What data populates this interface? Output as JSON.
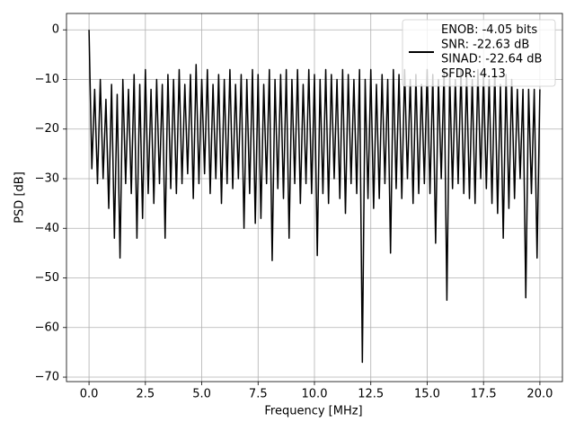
{
  "chart_data": {
    "type": "line",
    "xlabel": "Frequency [MHz]",
    "ylabel": "PSD [dB]",
    "xlim": [
      -1,
      21
    ],
    "ylim": [
      -70.9,
      3.3
    ],
    "xticks": [
      {
        "value": 0,
        "label": "0.0"
      },
      2.5,
      {
        "value": 5,
        "label": "5.0"
      },
      7.5,
      {
        "value": 10,
        "label": "10.0"
      },
      12.5,
      {
        "value": 15,
        "label": "15.0"
      },
      17.5,
      {
        "value": 20,
        "label": "20.0"
      }
    ],
    "yticks": [
      {
        "value": -70,
        "label": "−70"
      },
      {
        "value": -60,
        "label": "−60"
      },
      {
        "value": -50,
        "label": "−50"
      },
      {
        "value": -40,
        "label": "−40"
      },
      {
        "value": -30,
        "label": "−30"
      },
      {
        "value": -20,
        "label": "−20"
      },
      {
        "value": -10,
        "label": "−10"
      },
      0
    ],
    "grid": true,
    "legend": "upper right",
    "x": [
      0,
      0.125,
      0.25,
      0.375,
      0.5,
      0.625,
      0.75,
      0.875,
      1,
      1.125,
      1.25,
      1.375,
      1.5,
      1.625,
      1.75,
      1.875,
      2,
      2.125,
      2.25,
      2.375,
      2.5,
      2.625,
      2.75,
      2.875,
      3,
      3.125,
      3.25,
      3.375,
      3.5,
      3.625,
      3.75,
      3.875,
      4,
      4.125,
      4.25,
      4.375,
      4.5,
      4.625,
      4.75,
      4.875,
      5,
      5.125,
      5.25,
      5.375,
      5.5,
      5.625,
      5.75,
      5.875,
      6,
      6.125,
      6.25,
      6.375,
      6.5,
      6.625,
      6.75,
      6.875,
      7,
      7.125,
      7.25,
      7.375,
      7.5,
      7.625,
      7.75,
      7.875,
      8,
      8.125,
      8.25,
      8.375,
      8.5,
      8.625,
      8.75,
      8.875,
      9,
      9.125,
      9.25,
      9.375,
      9.5,
      9.625,
      9.75,
      9.875,
      10,
      10.125,
      10.25,
      10.375,
      10.5,
      10.625,
      10.75,
      10.875,
      11,
      11.125,
      11.25,
      11.375,
      11.5,
      11.625,
      11.75,
      11.875,
      12,
      12.125,
      12.25,
      12.375,
      12.5,
      12.625,
      12.75,
      12.875,
      13,
      13.125,
      13.25,
      13.375,
      13.5,
      13.625,
      13.75,
      13.875,
      14,
      14.125,
      14.25,
      14.375,
      14.5,
      14.625,
      14.75,
      14.875,
      15,
      15.125,
      15.25,
      15.375,
      15.5,
      15.625,
      15.75,
      15.875,
      16,
      16.125,
      16.25,
      16.375,
      16.5,
      16.625,
      16.75,
      16.875,
      17,
      17.125,
      17.25,
      17.375,
      17.5,
      17.625,
      17.75,
      17.875,
      18,
      18.125,
      18.25,
      18.375,
      18.5,
      18.625,
      18.75,
      18.875,
      19,
      19.125,
      19.25,
      19.375,
      19.5,
      19.625,
      19.75,
      19.875,
      20
    ],
    "series": [
      {
        "name": "ENOB: -4.05 bits\nSNR: -22.63 dB\nSINAD: -22.64 dB\nSFDR: 4.13",
        "color": "#000000",
        "values": [
          0,
          -28,
          -12,
          -31,
          -10,
          -30,
          -14,
          -36,
          -11,
          -42,
          -13,
          -46,
          -10,
          -31,
          -12,
          -33,
          -9,
          -42,
          -11,
          -38,
          -8,
          -33,
          -12,
          -35,
          -10,
          -31,
          -11,
          -42,
          -9,
          -32,
          -10,
          -33,
          -8,
          -31,
          -11,
          -29,
          -9,
          -34,
          -7,
          -31,
          -10,
          -29,
          -8,
          -33,
          -11,
          -30,
          -9,
          -35,
          -10,
          -31,
          -8,
          -32,
          -11,
          -30,
          -9,
          -40,
          -10,
          -33,
          -8,
          -39,
          -9,
          -38,
          -11,
          -31,
          -8,
          -46.5,
          -10,
          -32,
          -9,
          -34,
          -8,
          -42,
          -10,
          -31,
          -8,
          -35,
          -11,
          -31,
          -8,
          -33,
          -9,
          -45.5,
          -10,
          -33,
          -8,
          -35,
          -9,
          -30,
          -10,
          -34,
          -8,
          -37,
          -9,
          -31,
          -10,
          -33,
          -8,
          -67,
          -10,
          -34,
          -8,
          -36,
          -11,
          -34,
          -9,
          -31,
          -10,
          -45,
          -8,
          -32,
          -9,
          -34,
          -8,
          -30,
          -10,
          -35,
          -9,
          -33,
          -11,
          -31,
          -8,
          -33,
          -9,
          -43,
          -10,
          -30,
          -8,
          -54.5,
          -9,
          -32,
          -10,
          -31,
          -8,
          -33,
          -9,
          -34,
          -10,
          -35,
          -8,
          -30,
          -9,
          -32,
          -10,
          -35,
          -8,
          -37,
          -11,
          -42,
          -9,
          -36,
          -10,
          -34,
          -12,
          -30,
          -12,
          -54,
          -12,
          -33,
          -12,
          -46,
          -12
        ]
      }
    ]
  }
}
